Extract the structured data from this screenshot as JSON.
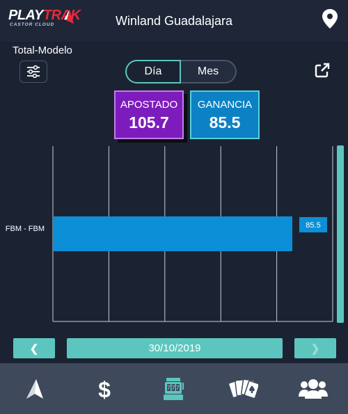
{
  "header": {
    "logo_play": "PLAY",
    "logo_trak": "TRAK",
    "logo_sub": "CASTOR CLOUD",
    "title": "Winland Guadalajara"
  },
  "section_label": "Total-Modelo",
  "period_tabs": [
    {
      "label": "Día",
      "selected": true
    },
    {
      "label": "Mes",
      "selected": false
    }
  ],
  "cards": {
    "apostado": {
      "label": "APOSTADO",
      "value": "105.7"
    },
    "ganancia": {
      "label": "GANANCIA",
      "value": "85.5"
    }
  },
  "chart_data": {
    "type": "bar",
    "orientation": "horizontal",
    "categories": [
      "FBM - FBM"
    ],
    "values": [
      85.5
    ],
    "grid": true,
    "color": "#0c8fd6"
  },
  "date_nav": {
    "prev": "❮",
    "date": "30/10/2019",
    "next": "❯"
  },
  "bottom_nav": [
    "home-icon",
    "dollar-icon",
    "slot-machine-icon",
    "cards-icon",
    "users-icon"
  ],
  "colors": {
    "accent": "#5cc6be",
    "apostado": "#7d1cbc",
    "ganancia": "#0c82c4",
    "background": "#1b2333"
  }
}
